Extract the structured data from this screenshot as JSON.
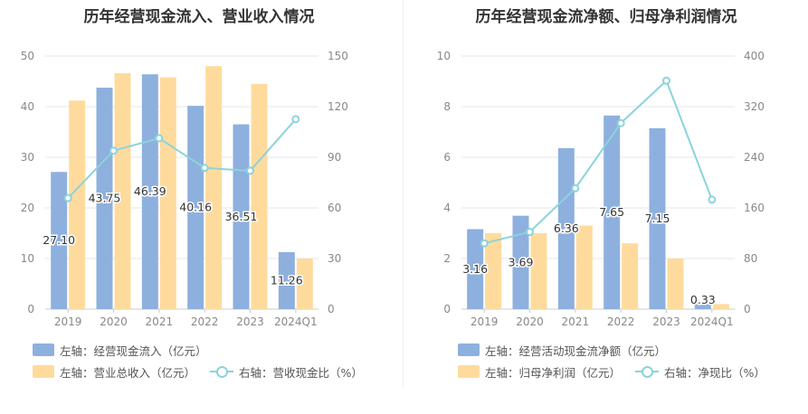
{
  "colors": {
    "bar1": "#8eb0de",
    "bar2": "#fedb9d",
    "line": "#8cd3dc",
    "grid": "#e6e6ee",
    "axis": "#888888"
  },
  "chart_data": [
    {
      "type": "bar",
      "title": "历年经营现金流入、营业收入情况",
      "categories": [
        "2019",
        "2020",
        "2021",
        "2022",
        "2023",
        "2024Q1"
      ],
      "left_axis": {
        "min": 0,
        "max": 50,
        "ticks": [
          "0",
          "10",
          "20",
          "30",
          "40",
          "50"
        ]
      },
      "right_axis": {
        "min": 0,
        "max": 150,
        "ticks": [
          "0",
          "30",
          "60",
          "90",
          "120",
          "150"
        ]
      },
      "series": [
        {
          "name": "左轴：经营现金流入（亿元）",
          "kind": "bar",
          "axis": "left",
          "values": [
            27.1,
            43.75,
            46.39,
            40.16,
            36.51,
            11.26
          ],
          "labels": [
            "27.10",
            "43.75",
            "46.39",
            "40.16",
            "36.51",
            "11.26"
          ]
        },
        {
          "name": "左轴：营业总收入（亿元）",
          "kind": "bar",
          "axis": "left",
          "values": [
            41.2,
            46.6,
            45.8,
            48.0,
            44.5,
            10.0
          ]
        },
        {
          "name": "右轴：营收现金比（%）",
          "kind": "line",
          "axis": "right",
          "values": [
            65.8,
            93.9,
            101.3,
            83.7,
            82.0,
            112.6
          ]
        }
      ]
    },
    {
      "type": "bar",
      "title": "历年经营现金流净额、归母净利润情况",
      "categories": [
        "2019",
        "2020",
        "2021",
        "2022",
        "2023",
        "2024Q1"
      ],
      "left_axis": {
        "min": 0,
        "max": 10,
        "ticks": [
          "0",
          "2",
          "4",
          "6",
          "8",
          "10"
        ]
      },
      "right_axis": {
        "min": 0,
        "max": 400,
        "ticks": [
          "0",
          "80",
          "160",
          "240",
          "320",
          "400"
        ]
      },
      "series": [
        {
          "name": "左轴：经营活动现金流净额（亿元）",
          "kind": "bar",
          "axis": "left",
          "values": [
            3.16,
            3.69,
            6.36,
            7.65,
            7.15,
            0.33
          ],
          "labels": [
            "3.16",
            "3.69",
            "6.36",
            "7.65",
            "7.15",
            "0.33"
          ]
        },
        {
          "name": "左轴：归母净利润（亿元）",
          "kind": "bar",
          "axis": "left",
          "values": [
            3.0,
            3.0,
            3.3,
            2.6,
            2.0,
            0.2
          ]
        },
        {
          "name": "右轴：净现比（%）",
          "kind": "line",
          "axis": "right",
          "values": [
            104,
            122,
            191,
            294,
            361,
            173
          ]
        }
      ]
    }
  ]
}
